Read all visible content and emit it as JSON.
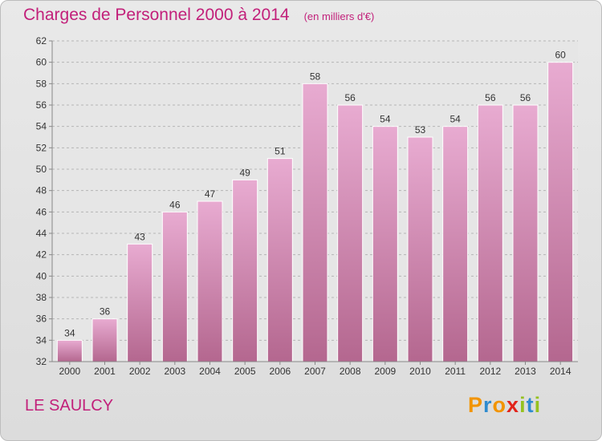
{
  "chart_data": {
    "type": "bar",
    "title": "Charges de Personnel 2000 à 2014",
    "subtitle": "(en milliers d'€)",
    "categories": [
      "2000",
      "2001",
      "2002",
      "2003",
      "2004",
      "2005",
      "2006",
      "2007",
      "2008",
      "2009",
      "2010",
      "2011",
      "2012",
      "2013",
      "2014"
    ],
    "values": [
      34,
      36,
      43,
      46,
      47,
      49,
      51,
      58,
      56,
      54,
      53,
      54,
      56,
      56,
      60
    ],
    "ylim": [
      32,
      62
    ],
    "yticks": [
      32,
      34,
      36,
      38,
      40,
      42,
      44,
      46,
      48,
      50,
      52,
      54,
      56,
      58,
      60,
      62
    ],
    "grid": true,
    "bar_color": "#dc9cc4"
  },
  "place_name": "LE SAULCY",
  "logo": {
    "text": "Proxiti",
    "letters": [
      {
        "ch": "P",
        "color": "#f29400"
      },
      {
        "ch": "r",
        "color": "#2e8bcf"
      },
      {
        "ch": "o",
        "color": "#f29400"
      },
      {
        "ch": "x",
        "color": "#e2231a"
      },
      {
        "ch": "i",
        "color": "#95c11f"
      },
      {
        "ch": "t",
        "color": "#2e8bcf"
      },
      {
        "ch": "i",
        "color": "#95c11f"
      }
    ]
  }
}
